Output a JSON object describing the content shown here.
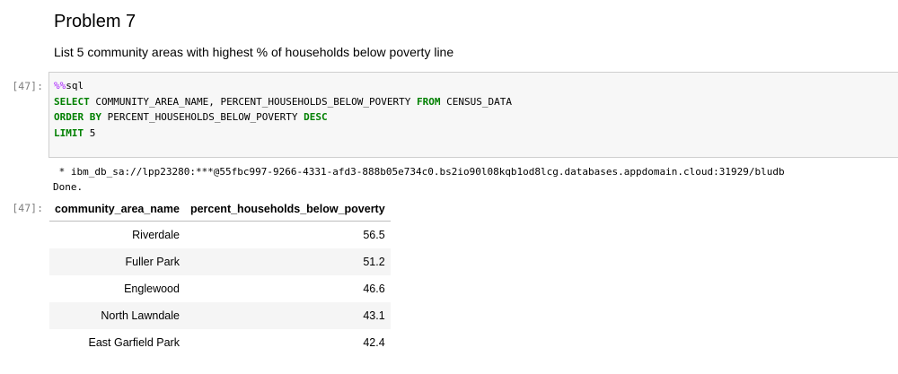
{
  "markdown": {
    "title": "Problem 7",
    "description": "List 5 community areas with highest % of households below poverty line"
  },
  "cell": {
    "in_prompt": "[47]:",
    "out_prompt": "[47]:",
    "code": {
      "magic_pct": "%%",
      "magic_name": "sql",
      "line1_kw": "SELECT",
      "line1_rest": " COMMUNITY_AREA_NAME, PERCENT_HOUSEHOLDS_BELOW_POVERTY ",
      "line1_kw2": "FROM",
      "line1_tail": " CENSUS_DATA",
      "line2_kw": "ORDER BY",
      "line2_rest": " PERCENT_HOUSEHOLDS_BELOW_POVERTY ",
      "line2_kw2": "DESC",
      "line3_kw": "LIMIT",
      "line3_rest": " 5"
    },
    "output": {
      "connection": " * ibm_db_sa://lpp23280:***@55fbc997-9266-4331-afd3-888b05e734c0.bs2io90l08kqb1od8lcg.databases.appdomain.cloud:31929/bludb",
      "status": "Done."
    }
  },
  "table": {
    "headers": [
      "community_area_name",
      "percent_households_below_poverty"
    ],
    "rows": [
      [
        "Riverdale",
        "56.5"
      ],
      [
        "Fuller Park",
        "51.2"
      ],
      [
        "Englewood",
        "46.6"
      ],
      [
        "North Lawndale",
        "43.1"
      ],
      [
        "East Garfield Park",
        "42.4"
      ]
    ]
  }
}
